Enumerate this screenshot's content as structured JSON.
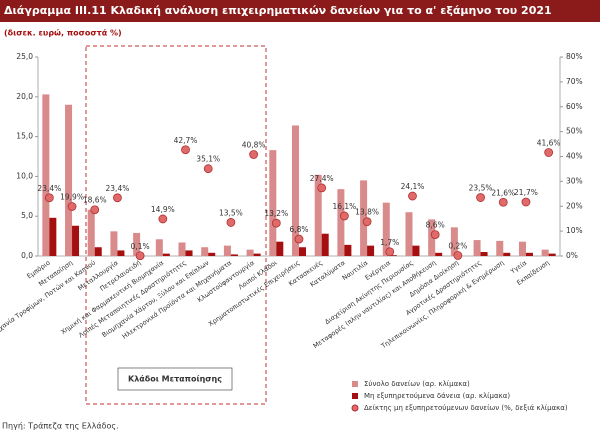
{
  "chart_data": {
    "type": "bar",
    "title": "Διάγραμμα ΙΙΙ.11 Κλαδική ανάλυση επιχειρηματικών δανείων για το α' εξάμηνο του 2021",
    "subtitle": "(δισεκ. ευρώ, ποσοστά %)",
    "group_label": "Κλάδοι Μεταποίησης",
    "source": "Πηγή: Τράπεζα της Ελλάδος.",
    "categories": [
      "Εμπόριο",
      "Μεταποίηση",
      "Βιομηχανία Τροφίμων, Ποτών και Καπνού",
      "Μεταλλουργία",
      "Πετρελαιοειδή",
      "Χημική και Φαρμακευτική Βιομηχανία",
      "Λοιπές Μεταποιητικές Δραστηριότητες",
      "Βιομηχανία Χάρτου, Ξύλου και Επίπλων",
      "Ηλεκτρονικά Προϊόντα και Μηχανήματα",
      "Κλωστοϋφαντουργία",
      "Λοιποί Κλάδοι",
      "Χρηματοπιστωτικές Επιχειρήσεις",
      "Κατασκευές",
      "Καταλύματα",
      "Ναυτιλία",
      "Ενέργεια",
      "Διαχείριση Ακίνητης Περιουσίας",
      "Μεταφορές (πλην ναυτιλίας) και Αποθήκευση",
      "Δημόσια Διοίκηση",
      "Αγροτικές Δραστηριότητες",
      "Τηλεπικοινωνίες, Πληροφορική & Ενημέρωση",
      "Υγεία",
      "Εκπαίδευση"
    ],
    "series": [
      {
        "name": "Σύνολο δανείων (αρ. κλίμακα)",
        "type": "bar",
        "color": "#d98a8a",
        "values": [
          20.3,
          19.0,
          5.8,
          3.1,
          2.9,
          2.1,
          1.7,
          1.1,
          1.3,
          0.8,
          13.3,
          16.4,
          10.2,
          8.4,
          9.5,
          6.7,
          5.5,
          4.6,
          3.6,
          2.0,
          1.9,
          1.8,
          0.8
        ]
      },
      {
        "name": "Μη εξυπηρετούμενα δάνεια (αρ. κλίμακα)",
        "type": "bar",
        "color": "#a50f0f",
        "values": [
          4.8,
          3.8,
          1.1,
          0.7,
          0.0,
          0.3,
          0.7,
          0.4,
          0.2,
          0.3,
          1.8,
          1.1,
          2.8,
          1.4,
          1.3,
          0.1,
          1.3,
          0.4,
          0.0,
          0.5,
          0.4,
          0.4,
          0.3
        ]
      },
      {
        "name": "Δείκτης μη εξυπηρετούμενων δανείων (%, δεξιά κλίμακα)",
        "type": "scatter",
        "axis": "y2",
        "color": "#e06a6a",
        "values": [
          23.4,
          19.9,
          18.6,
          23.4,
          0.1,
          14.9,
          42.7,
          35.1,
          13.5,
          40.8,
          13.2,
          6.8,
          27.4,
          16.1,
          13.8,
          1.7,
          24.1,
          8.6,
          0.2,
          23.5,
          21.6,
          21.7,
          41.6
        ],
        "value_labels": [
          "23,4%",
          "19,9%",
          "18,6%",
          "23,4%",
          "0,1%",
          "14,9%",
          "42,7%",
          "35,1%",
          "13,5%",
          "40,8%",
          "13,2%",
          "6,8%",
          "27,4%",
          "16,1%",
          "13,8%",
          "1,7%",
          "24,1%",
          "8,6%",
          "0,2%",
          "23,5%",
          "21,6%",
          "21,7%",
          "41,6%"
        ]
      }
    ],
    "ylim": [
      0,
      25
    ],
    "yticks": [
      {
        "value": 0,
        "label": "0,0"
      },
      {
        "value": 5,
        "label": "5,0"
      },
      {
        "value": 10,
        "label": "10,0"
      },
      {
        "value": 15,
        "label": "15,0"
      },
      {
        "value": 20,
        "label": "20,0"
      },
      {
        "value": 25,
        "label": "25,0"
      }
    ],
    "y2lim": [
      0,
      80
    ],
    "y2ticks": [
      {
        "value": 0,
        "label": "0%"
      },
      {
        "value": 10,
        "label": "10%"
      },
      {
        "value": 20,
        "label": "20%"
      },
      {
        "value": 30,
        "label": "30%"
      },
      {
        "value": 40,
        "label": "40%"
      },
      {
        "value": 50,
        "label": "50%"
      },
      {
        "value": 60,
        "label": "60%"
      },
      {
        "value": 70,
        "label": "70%"
      },
      {
        "value": 80,
        "label": "80%"
      }
    ]
  }
}
